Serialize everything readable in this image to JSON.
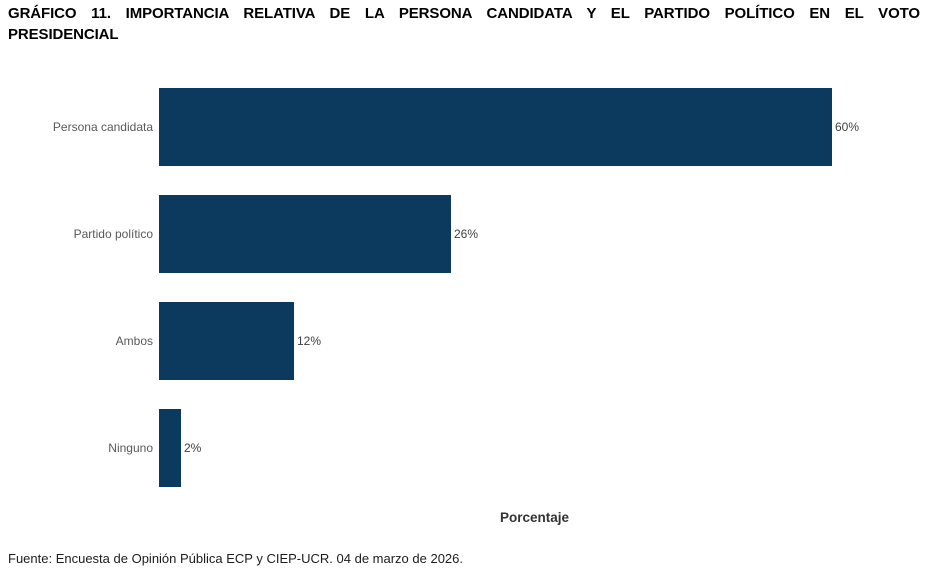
{
  "title": {
    "line1": "GRÁFICO 11. IMPORTANCIA RELATIVA DE LA PERSONA CANDIDATA Y EL PARTIDO POLÍTICO EN EL VOTO",
    "line2": "PRESIDENCIAL"
  },
  "chart_data": {
    "type": "bar",
    "orientation": "horizontal",
    "title": "GRÁFICO 11. IMPORTANCIA RELATIVA DE LA PERSONA CANDIDATA Y EL PARTIDO POLÍTICO EN EL VOTO PRESIDENCIAL",
    "categories": [
      "Persona candidata",
      "Partido político",
      "Ambos",
      "Ninguno"
    ],
    "values": [
      60,
      26,
      12,
      2
    ],
    "value_labels": [
      "60%",
      "26%",
      "12%",
      "2%"
    ],
    "xlabel": "Porcentaje",
    "ylabel": "",
    "xlim": [
      0,
      66
    ],
    "grid": false,
    "legend": false,
    "bar_color": "#0c3a5e",
    "category_label_color": "#595959",
    "value_label_color": "#404040"
  },
  "footer": {
    "source": "Fuente: Encuesta de Opinión Pública ECP y CIEP-UCR. 04 de marzo de 2026."
  }
}
